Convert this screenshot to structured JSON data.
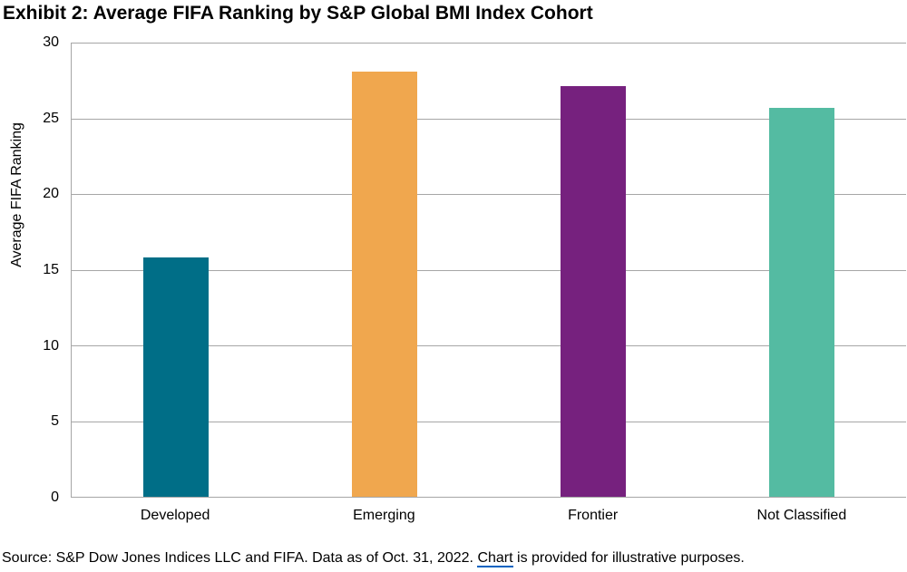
{
  "page": {
    "title": "Exhibit 2: Average FIFA Ranking by S&P Global BMI Index Cohort"
  },
  "chart_data": {
    "type": "bar",
    "title": "Exhibit 2: Average FIFA Ranking by S&P Global BMI Index Cohort",
    "categories": [
      "Developed",
      "Emerging",
      "Frontier",
      "Not Classified"
    ],
    "values": [
      15.8,
      28.1,
      27.1,
      25.7
    ],
    "bar_colors": [
      "#006E87",
      "#F0A74E",
      "#76217E",
      "#54BBA2"
    ],
    "xlabel": "",
    "ylabel": "Average FIFA Ranking",
    "ylim": [
      0,
      30
    ],
    "yticks": [
      0,
      5,
      10,
      15,
      20,
      25,
      30
    ],
    "grid": true,
    "gridline_color": "#A6A6A6",
    "legend_position": "none"
  },
  "footer": {
    "text_before_link": "Source: S&P Dow Jones Indices LLC and FIFA. Data as of Oct. 31, 2022. ",
    "link_text": "Chart",
    "text_after_link": " is provided for illustrative purposes.",
    "link_underline_color": "#0563C1"
  }
}
